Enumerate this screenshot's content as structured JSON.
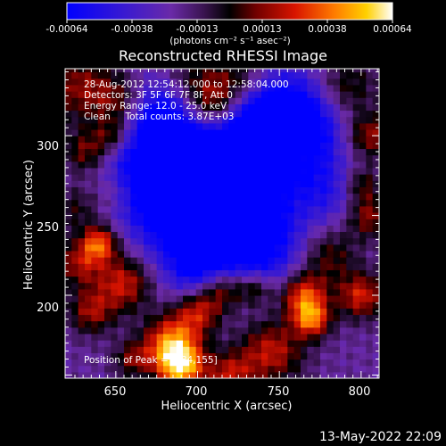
{
  "chart_data": {
    "type": "heatmap",
    "title": "Reconstructed RHESSI Image",
    "xlabel": "Heliocentric X (arcsec)",
    "ylabel": "Heliocentric Y (arcsec)",
    "xlim": [
      619,
      811
    ],
    "ylim": [
      148,
      342
    ],
    "x_ticks": [
      650,
      700,
      750,
      800
    ],
    "y_ticks": [
      200,
      250,
      300
    ],
    "colorbar": {
      "range": [
        -0.00064,
        0.00064
      ],
      "tick_labels": [
        "-0.00064",
        "-0.00038",
        "-0.00013",
        "0.00013",
        "0.00038",
        "0.00064"
      ],
      "unit_label": "(photons cm⁻² s⁻¹ asec⁻²)",
      "colors": [
        "#0000ff",
        "#4b0fb8",
        "#7a2a9a",
        "#000000",
        "#8a0000",
        "#e01400",
        "#ff7a00",
        "#ffd400",
        "#ffffff"
      ]
    },
    "annotations": [
      "28-Aug-2012 12:54:12.000 to 12:58:04.000",
      "Detectors: 3F 5F 6F 7F 8F, Att 0",
      "Energy Range: 12.0 - 25.0 keV",
      "Clean     Total counts: 3.87E+03"
    ],
    "peak_label": "Position of Peak = [684,155]",
    "peak": [
      684,
      155
    ],
    "grid": false
  },
  "footer": {
    "timestamp": "13-May-2022 22:09"
  }
}
